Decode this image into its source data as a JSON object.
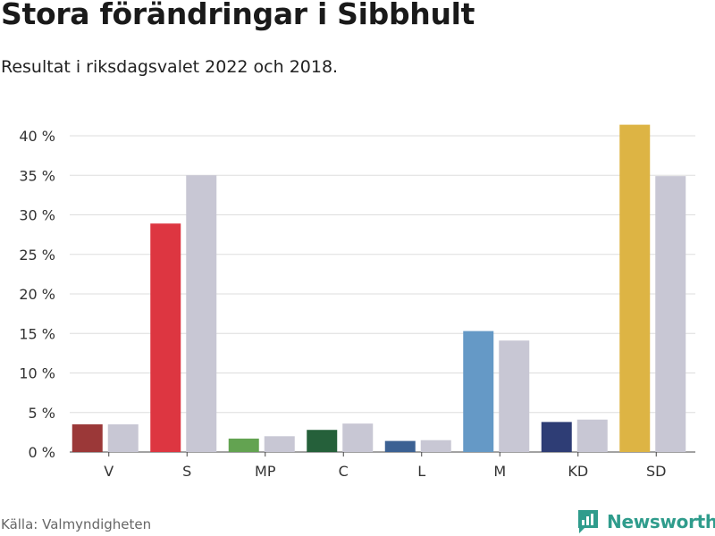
{
  "title": "Stora förändringar i Sibbhult",
  "subtitle": "Resultat i riksdagsvalet 2022 och 2018.",
  "source": "Källa: Valmyndigheten",
  "brand": {
    "name": "Newsworthy",
    "color": "#2f9c8c",
    "icon": "newsworthy-logo-icon"
  },
  "chart_data": {
    "type": "bar",
    "categories": [
      "V",
      "S",
      "MP",
      "C",
      "L",
      "M",
      "KD",
      "SD"
    ],
    "series": [
      {
        "values": [
          3.5,
          28.9,
          1.7,
          2.8,
          1.4,
          15.3,
          3.8,
          41.4
        ],
        "colors": [
          "#9b3838",
          "#dd3641",
          "#63a351",
          "#25603a",
          "#3c6193",
          "#6599c6",
          "#2e3d75",
          "#ddb444"
        ]
      },
      {
        "values": [
          3.5,
          35.0,
          2.0,
          3.6,
          1.5,
          14.1,
          4.1,
          34.9
        ],
        "color": "#c8c7d4"
      }
    ],
    "yticks": [
      "0 %",
      "5 %",
      "10 %",
      "15 %",
      "20 %",
      "25 %",
      "30 %",
      "35 %",
      "40 %"
    ],
    "ylim": [
      0,
      40
    ],
    "grid": true
  }
}
